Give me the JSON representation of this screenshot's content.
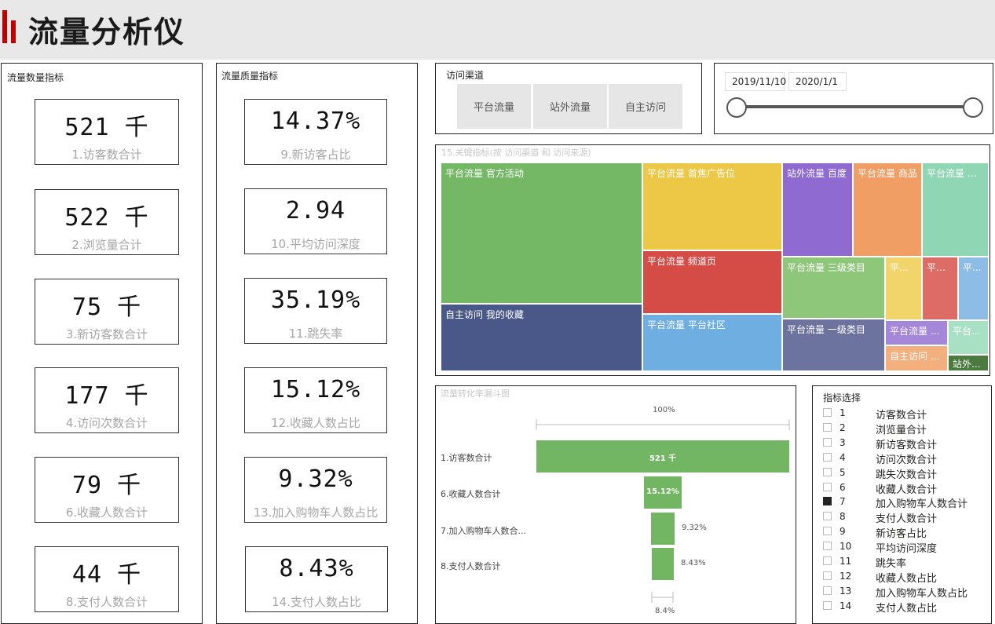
{
  "header": {
    "title": "流量分析仪"
  },
  "quantity_panel": {
    "title": "流量数量指标",
    "kpis": [
      {
        "value": "521 千",
        "label": "1.访客数合计"
      },
      {
        "value": "522 千",
        "label": "2.浏览量合计"
      },
      {
        "value": "75 千",
        "label": "3.新访客数合计"
      },
      {
        "value": "177 千",
        "label": "4.访问次数合计"
      },
      {
        "value": "79 千",
        "label": "6.收藏人数合计"
      },
      {
        "value": "44 千",
        "label": "8.支付人数合计"
      }
    ]
  },
  "quality_panel": {
    "title": "流量质量指标",
    "kpis": [
      {
        "value": "14.37%",
        "label": "9.新访客占比"
      },
      {
        "value": "2.94",
        "label": "10.平均访问深度"
      },
      {
        "value": "35.19%",
        "label": "11.跳失率"
      },
      {
        "value": "15.12%",
        "label": "12.收藏人数占比"
      },
      {
        "value": "9.32%",
        "label": "13.加入购物车人数占比"
      },
      {
        "value": "8.43%",
        "label": "14.支付人数占比"
      }
    ]
  },
  "channel_slicer": {
    "title": "访问渠道",
    "options": [
      "平台流量",
      "站外流量",
      "自主访问"
    ]
  },
  "date_slicer": {
    "start": "2019/11/10",
    "end": "2020/1/1"
  },
  "treemap": {
    "title": "15.关键指标(按 访问渠道 和 访问来源)",
    "tiles": [
      {
        "label": "平台流量 官方活动",
        "color": "#74b765"
      },
      {
        "label": "自主访问 我的收藏",
        "color": "#4a5889"
      },
      {
        "label": "平台流量 首焦广告位",
        "color": "#ecc846"
      },
      {
        "label": "平台流量 频道页",
        "color": "#d54b45"
      },
      {
        "label": "平台流量 平台社区",
        "color": "#6eaee1"
      },
      {
        "label": "站外流量 百度",
        "color": "#8f6bd1"
      },
      {
        "label": "平台流量 商品",
        "color": "#f09e64"
      },
      {
        "label": "平台流量 站内",
        "color": "#8fd7b4"
      },
      {
        "label": "平台流量 三级类目",
        "color": "#8ec67a"
      },
      {
        "label": "平台流量 一级类目",
        "color": "#6c739e"
      },
      {
        "label": "平台...",
        "color": "#f1d46a"
      },
      {
        "label": "平台...",
        "color": "#dd6b66"
      },
      {
        "label": "平...",
        "color": "#8dbde6"
      },
      {
        "label": "平台流量 ...",
        "color": "#a587da"
      },
      {
        "label": "自主访问 ...",
        "color": "#f3b07e"
      },
      {
        "label": "平台...",
        "color": "#a8e0c4"
      },
      {
        "label": "站外...",
        "color": "#4a7a3e"
      }
    ]
  },
  "funnel": {
    "title": "流量转化率漏斗图",
    "top_label": "100%",
    "bottom_label": "8.4%",
    "stages": [
      {
        "label": "1.访客数合计",
        "display": "521 千",
        "fraction": 1.0
      },
      {
        "label": "6.收藏人数合计",
        "display": "15.12%",
        "fraction": 0.1512
      },
      {
        "label": "7.加入购物车人数合...",
        "display": "9.32%",
        "fraction": 0.0932
      },
      {
        "label": "8.支付人数合计",
        "display": "8.43%",
        "fraction": 0.0843
      }
    ]
  },
  "indicator_slicer": {
    "title": "指标选择",
    "items": [
      {
        "num": "1",
        "name": "访客数合计",
        "checked": false
      },
      {
        "num": "2",
        "name": "浏览量合计",
        "checked": false
      },
      {
        "num": "3",
        "name": "新访客数合计",
        "checked": false
      },
      {
        "num": "4",
        "name": "访问次数合计",
        "checked": false
      },
      {
        "num": "5",
        "name": "跳失次数合计",
        "checked": false
      },
      {
        "num": "6",
        "name": "收藏人数合计",
        "checked": false
      },
      {
        "num": "7",
        "name": "加入购物车人数合计",
        "checked": true
      },
      {
        "num": "8",
        "name": "支付人数合计",
        "checked": false
      },
      {
        "num": "9",
        "name": "新访客占比",
        "checked": false
      },
      {
        "num": "10",
        "name": "平均访问深度",
        "checked": false
      },
      {
        "num": "11",
        "name": "跳失率",
        "checked": false
      },
      {
        "num": "12",
        "name": "收藏人数占比",
        "checked": false
      },
      {
        "num": "13",
        "name": "加入购物车人数占比",
        "checked": false
      },
      {
        "num": "14",
        "name": "支付人数占比",
        "checked": false
      }
    ]
  }
}
